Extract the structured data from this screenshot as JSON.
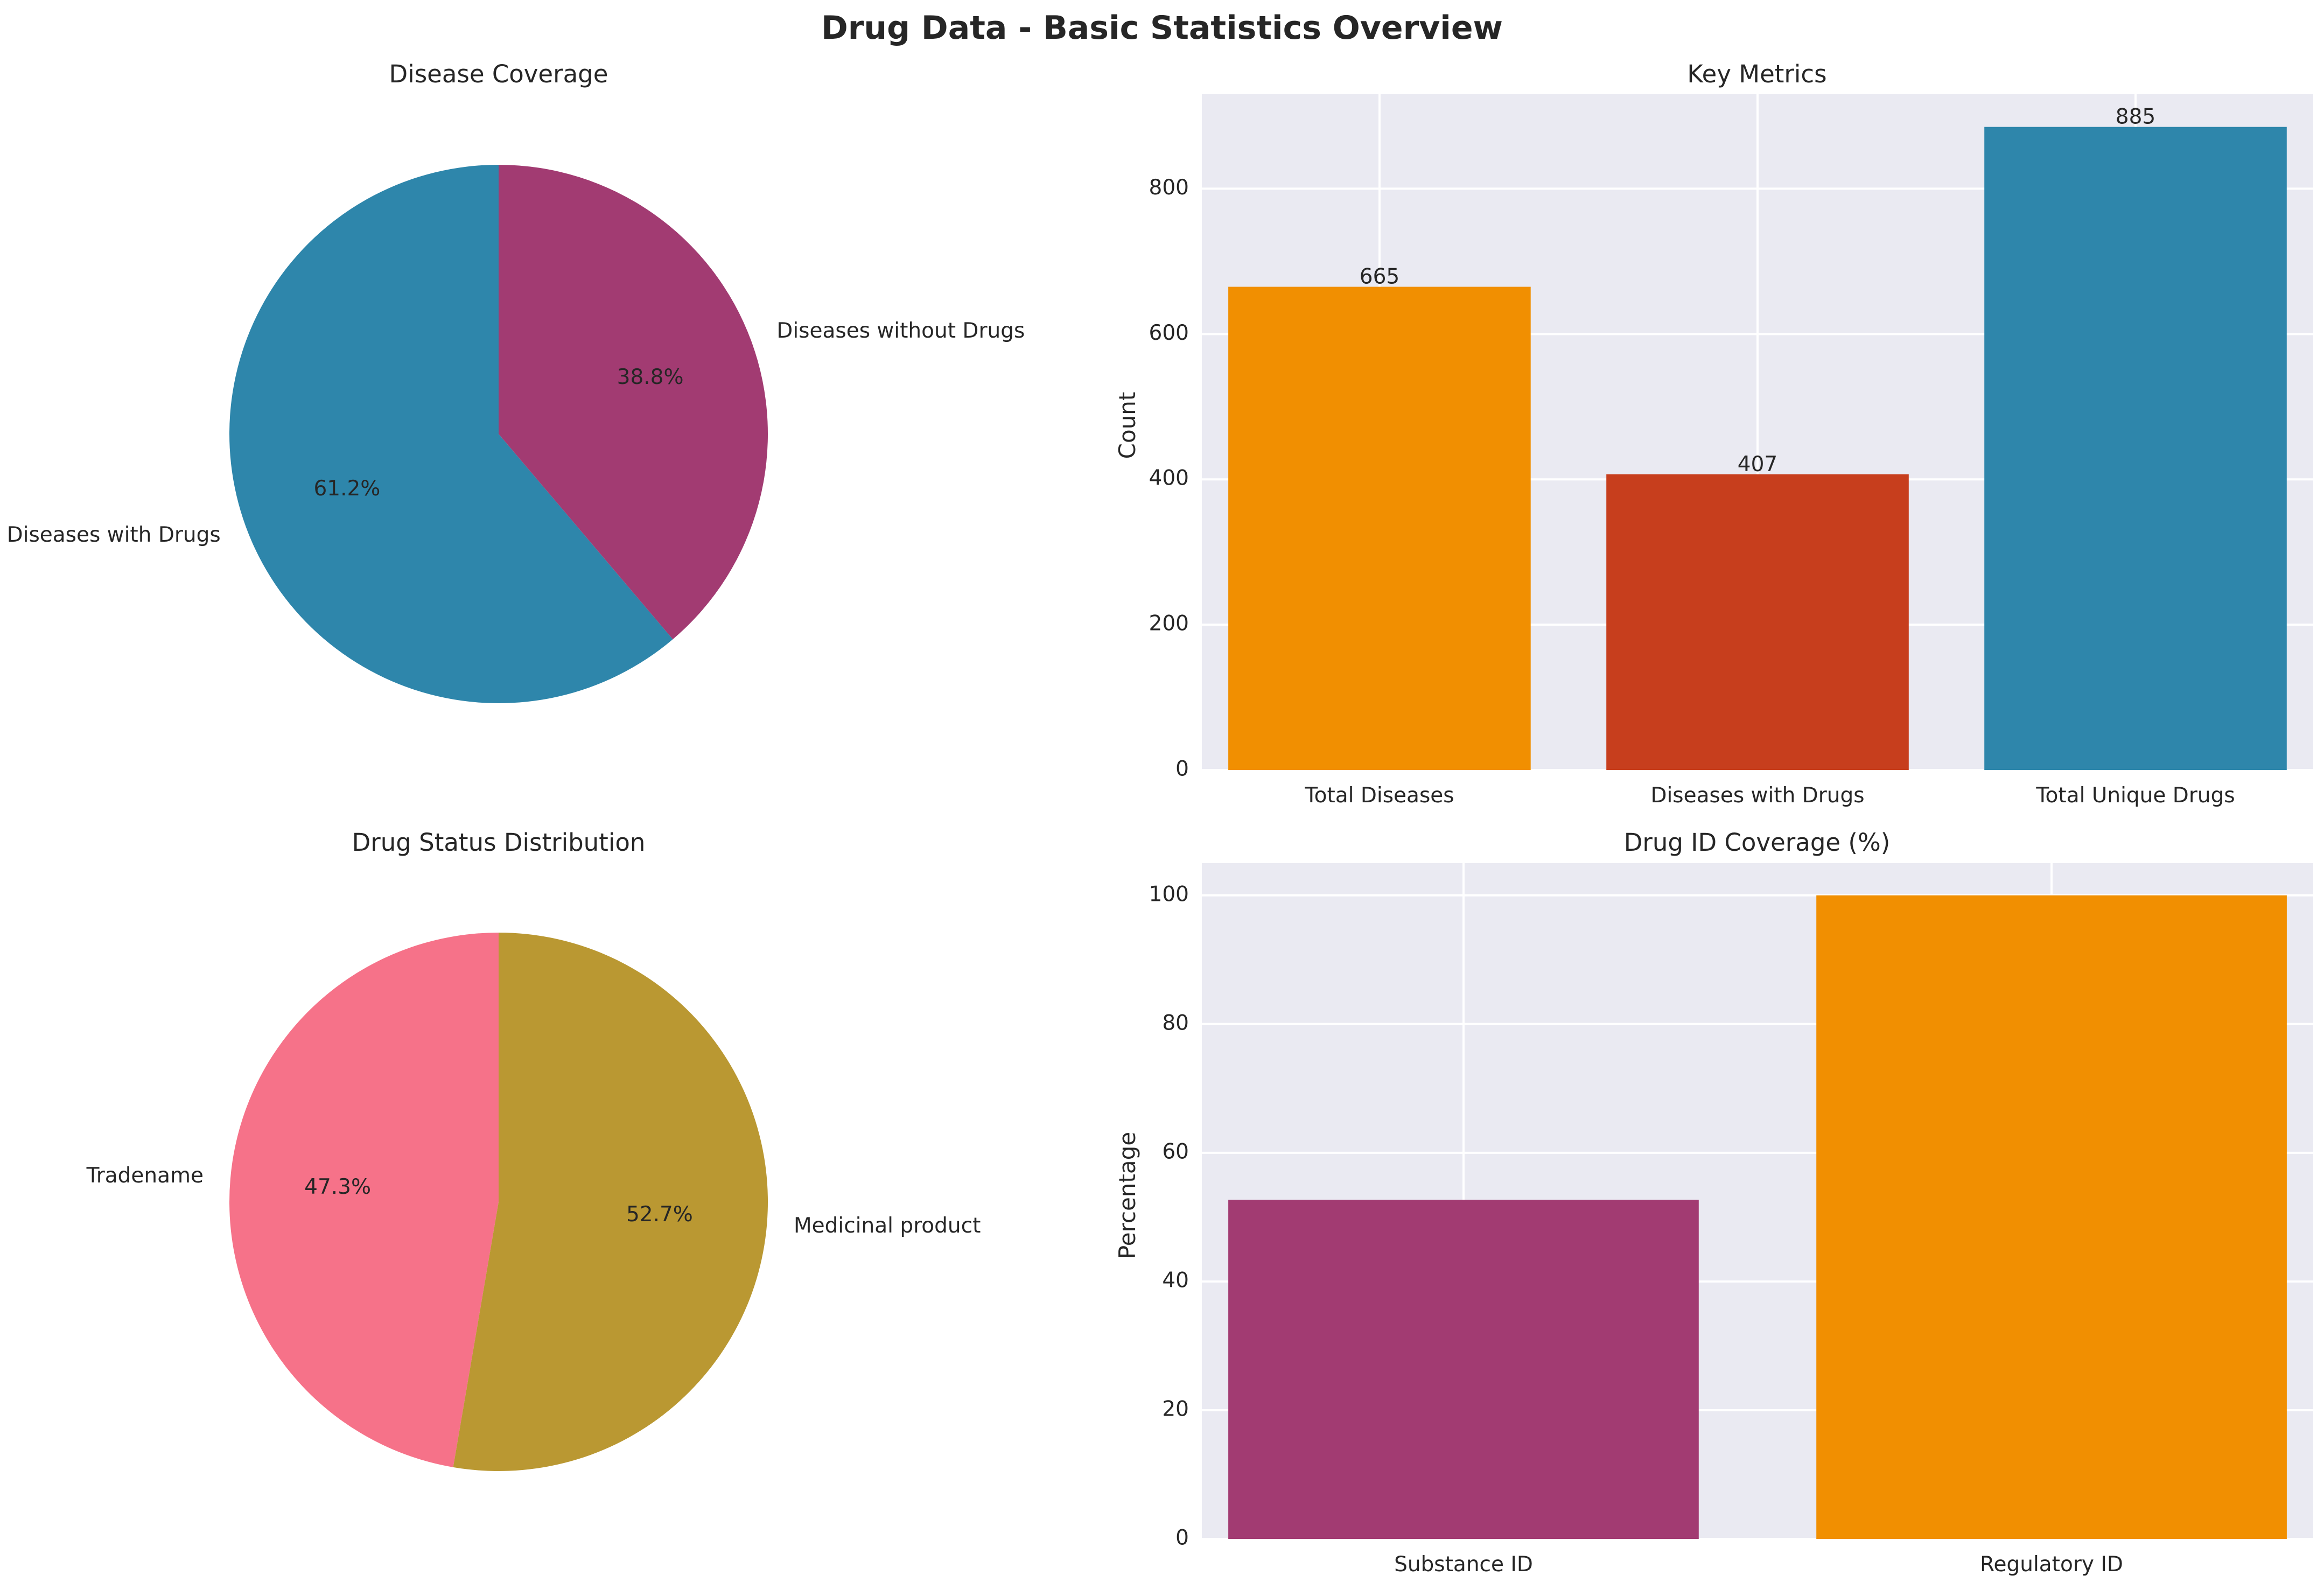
{
  "figure": {
    "title": "Drug Data - Basic Statistics Overview"
  },
  "colors": {
    "blue": "#2E86AB",
    "purple": "#A23B72",
    "orange": "#F18F01",
    "red": "#C73E1D",
    "pink": "#F67289",
    "olive": "#BA9832",
    "axes_bg": "#EAEAF2",
    "grid": "#FFFFFF"
  },
  "chart_data": [
    {
      "type": "pie",
      "title": "Disease Coverage",
      "labels": [
        "Diseases with Drugs",
        "Diseases without Drugs"
      ],
      "values": [
        61.2,
        38.8
      ],
      "pct_labels": [
        "61.2%",
        "38.8%"
      ],
      "colors": [
        "#2E86AB",
        "#A23B72"
      ],
      "start_angle_deg": 90,
      "direction": "counterclockwise"
    },
    {
      "type": "bar",
      "title": "Key Metrics",
      "categories": [
        "Total Diseases",
        "Diseases with Drugs",
        "Total Unique Drugs"
      ],
      "values": [
        665,
        407,
        885
      ],
      "value_labels": [
        "665",
        "407",
        "885"
      ],
      "colors": [
        "#F18F01",
        "#C73E1D",
        "#2E86AB"
      ],
      "ylabel": "Count",
      "ylim": [
        0,
        930
      ],
      "yticks": [
        0,
        200,
        400,
        600,
        800
      ],
      "grid": true
    },
    {
      "type": "pie",
      "title": "Drug Status Distribution",
      "labels": [
        "Tradename",
        "Medicinal product"
      ],
      "values": [
        47.3,
        52.7
      ],
      "pct_labels": [
        "47.3%",
        "52.7%"
      ],
      "colors": [
        "#F67289",
        "#BA9832"
      ],
      "start_angle_deg": 90,
      "direction": "counterclockwise"
    },
    {
      "type": "bar",
      "title": "Drug ID Coverage (%)",
      "categories": [
        "Substance ID",
        "Regulatory ID"
      ],
      "values": [
        52.7,
        100
      ],
      "colors": [
        "#A23B72",
        "#F18F01"
      ],
      "ylabel": "Percentage",
      "ylim": [
        0,
        105
      ],
      "yticks": [
        0,
        20,
        40,
        60,
        80,
        100
      ],
      "grid": true
    }
  ]
}
